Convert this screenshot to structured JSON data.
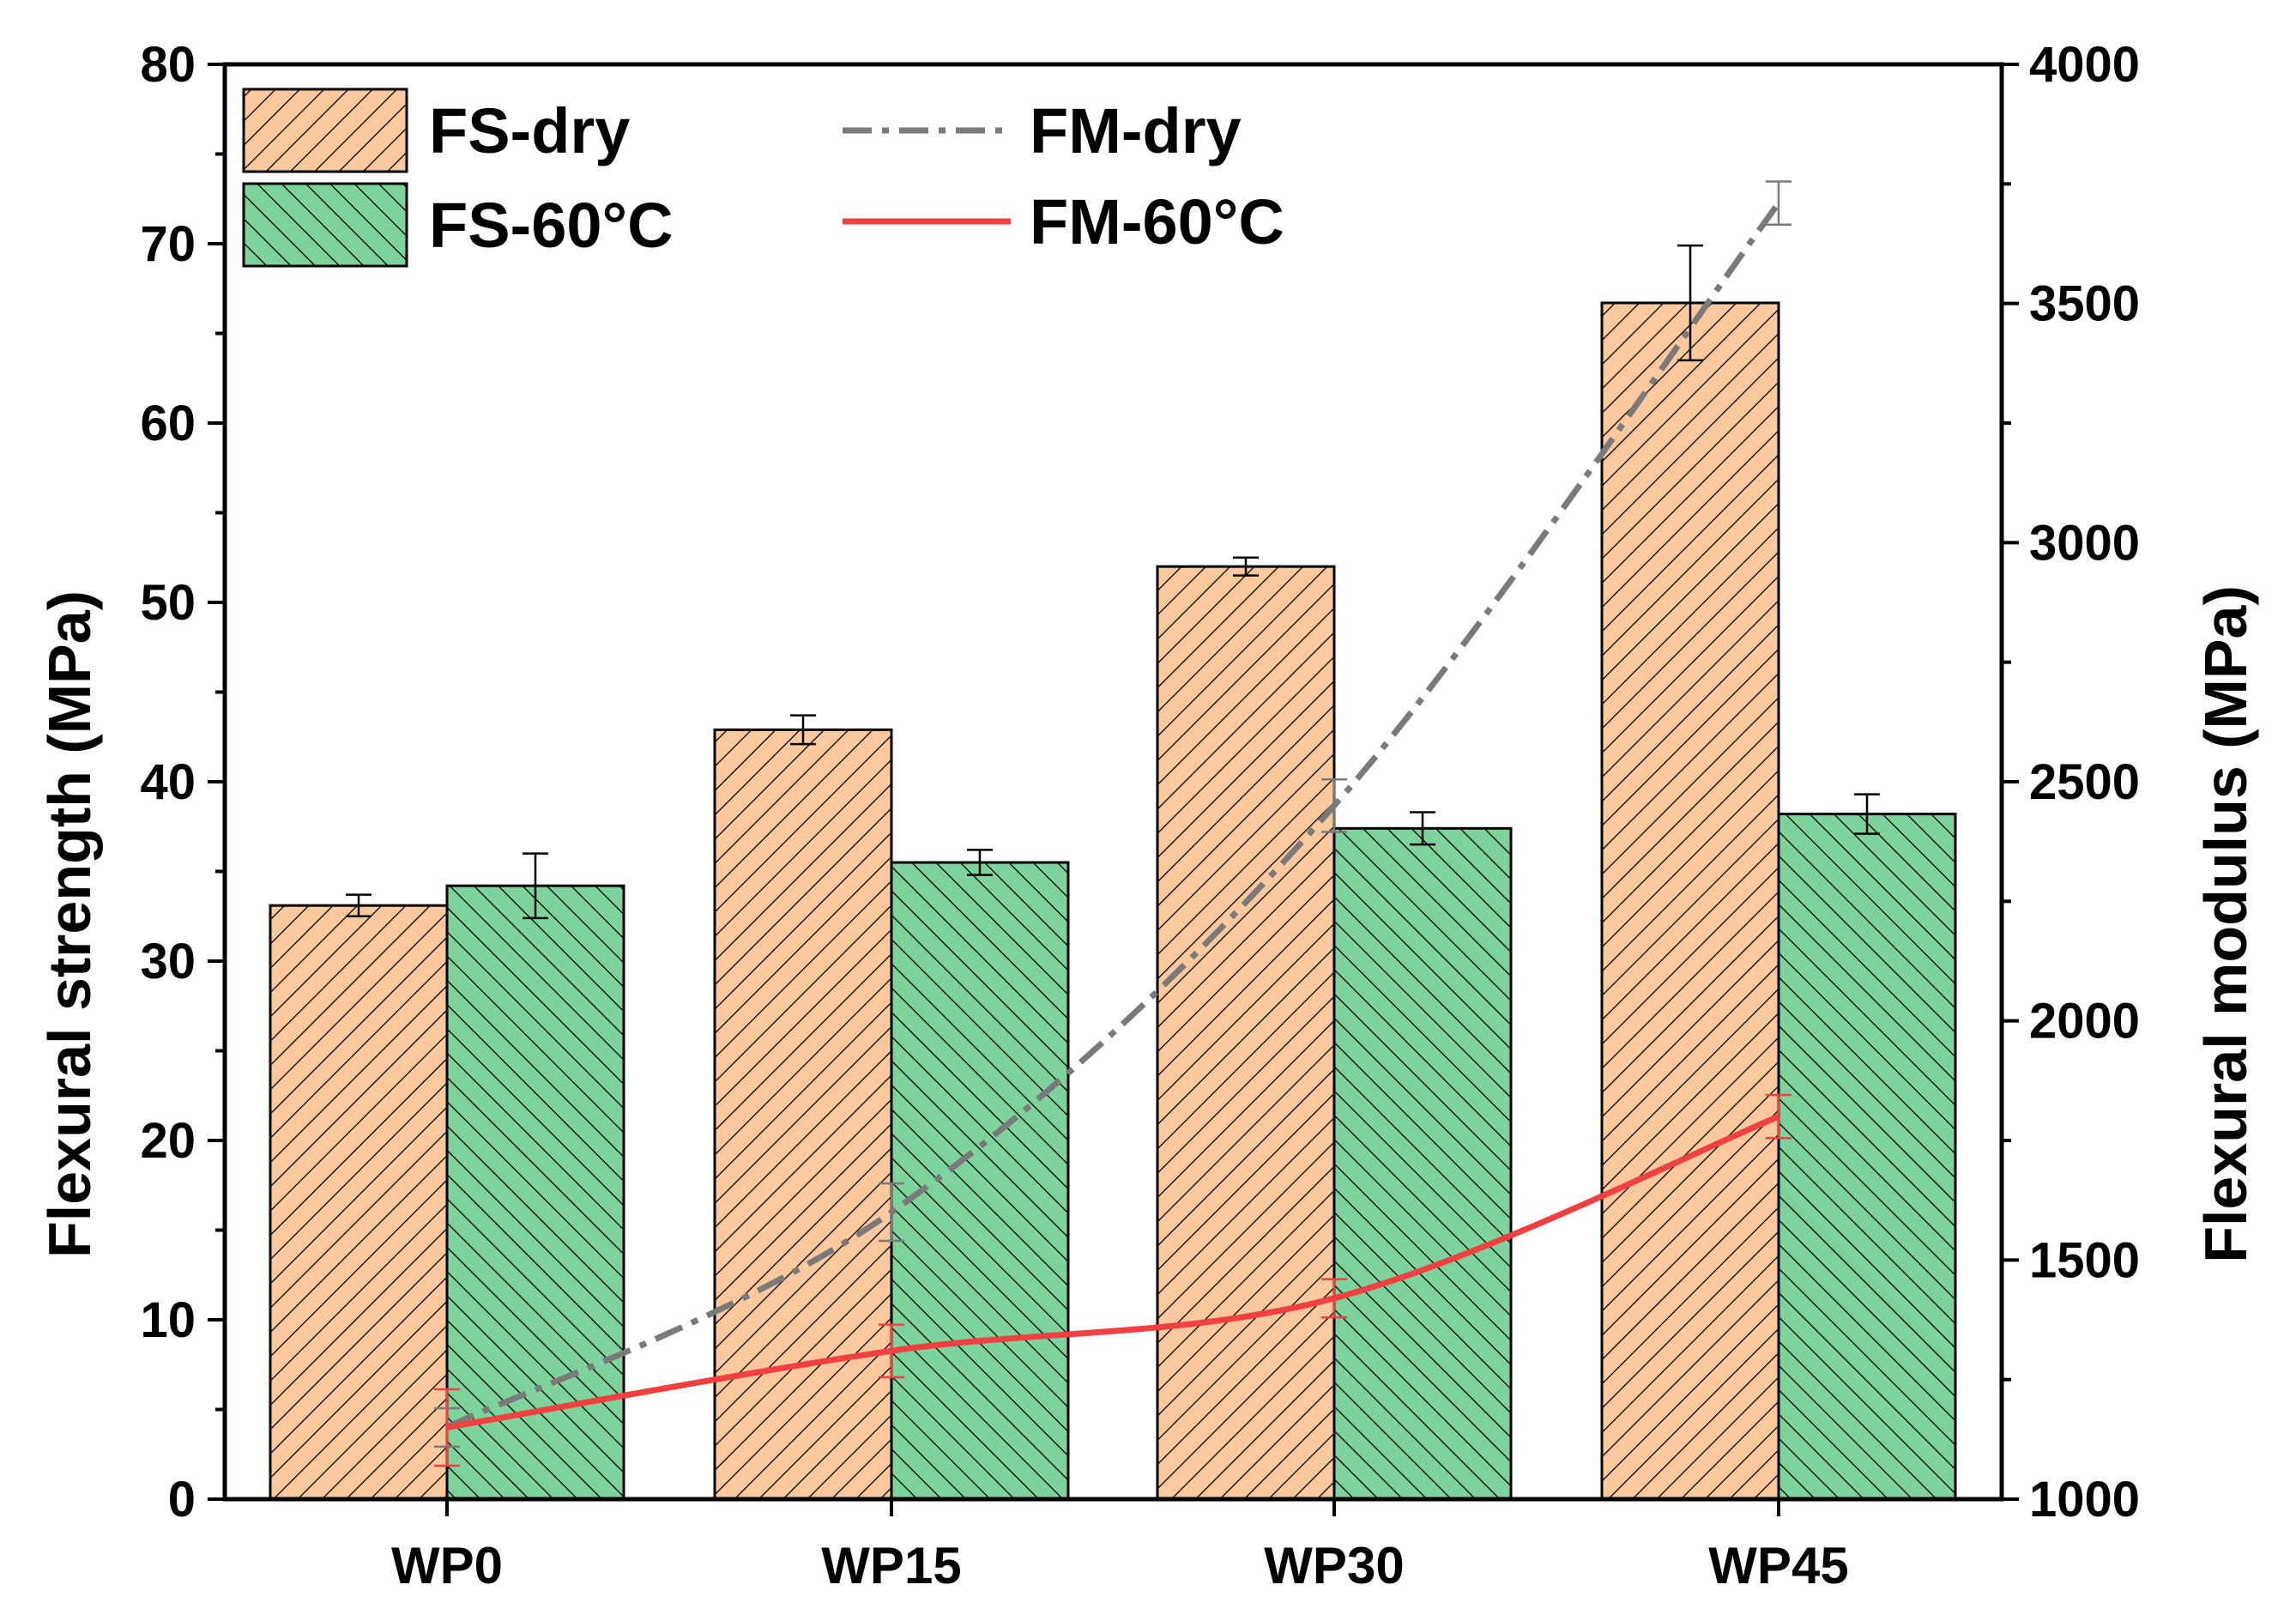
{
  "chart_data": {
    "type": "bar",
    "categories": [
      "WP0",
      "WP15",
      "WP30",
      "WP45"
    ],
    "bar_series": [
      {
        "name": "FS-dry",
        "axis": "left",
        "color": "#FCC99E",
        "hatch": "right-diagonal",
        "values": [
          33.1,
          42.9,
          52.0,
          66.7
        ],
        "errors": [
          0.6,
          0.8,
          0.5,
          3.2
        ]
      },
      {
        "name": "FS-60°C",
        "axis": "left",
        "color": "#7ED39C",
        "hatch": "left-diagonal",
        "values": [
          34.2,
          35.5,
          37.4,
          38.2
        ],
        "errors": [
          1.8,
          0.7,
          0.9,
          1.1
        ]
      }
    ],
    "line_series": [
      {
        "name": "FM-dry",
        "axis": "right",
        "color": "#7A7A7A",
        "style": "dash-dot",
        "values": [
          1150,
          1600,
          2450,
          3710
        ],
        "errors": [
          40,
          60,
          55,
          45
        ]
      },
      {
        "name": "FM-60°C",
        "axis": "right",
        "color": "#F04040",
        "style": "solid",
        "values": [
          1150,
          1310,
          1420,
          1800
        ],
        "errors": [
          80,
          55,
          40,
          45
        ]
      }
    ],
    "ylabel_left": "Flexural strength (MPa)",
    "ylabel_right": "Flexural modulus (MPa)",
    "xlabel": "",
    "ylim_left": [
      0,
      80
    ],
    "ylim_right": [
      1000,
      4000
    ],
    "yticks_left": [
      0,
      10,
      20,
      30,
      40,
      50,
      60,
      70,
      80
    ],
    "yticks_right": [
      1000,
      1500,
      2000,
      2500,
      3000,
      3500,
      4000
    ],
    "grid": false,
    "legend": "top-left, two columns"
  }
}
